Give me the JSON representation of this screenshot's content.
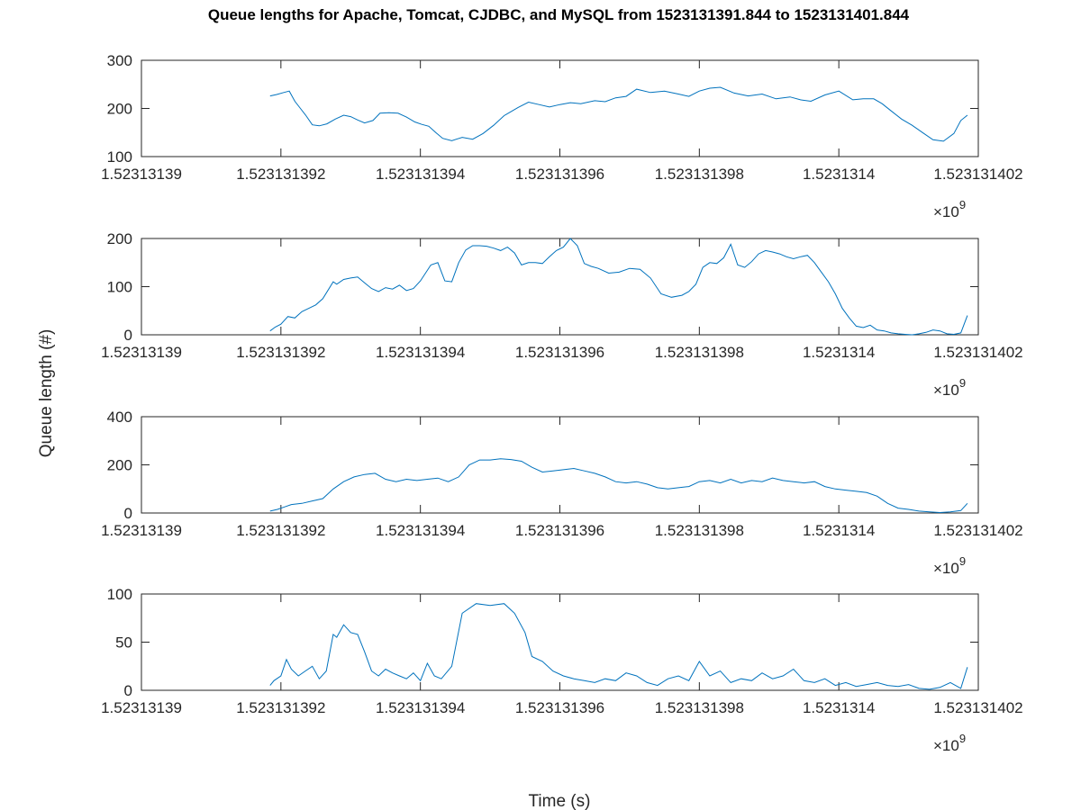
{
  "figure": {
    "title": "Queue lengths for Apache, Tomcat, CJDBC, and MySQL from 1523131391.844 to 1523131401.844",
    "xlabel": "Time (s)",
    "ylabel": "Queue length (#)",
    "x_exponent": "×10",
    "x_exponent_power": "9"
  },
  "chart_data": [
    {
      "type": "line",
      "line_color": "#0072BD",
      "xlim": [
        1523131390,
        1523131402
      ],
      "ylim": [
        100,
        300
      ],
      "x_ticks": [
        1523131390,
        1523131392,
        1523131394,
        1523131396,
        1523131398,
        1523131400,
        1523131402
      ],
      "x_tick_labels": [
        "1.52313139",
        "1.523131392",
        "1.523131394",
        "1.523131396",
        "1.523131398",
        "1.5231314",
        "1.523131402"
      ],
      "y_ticks": [
        100,
        200,
        300
      ],
      "y_tick_labels": [
        "100",
        "200",
        "300"
      ],
      "x": [
        1523131391.844,
        1523131391.94,
        1523131392.04,
        1523131392.12,
        1523131392.2,
        1523131392.28,
        1523131392.36,
        1523131392.45,
        1523131392.55,
        1523131392.66,
        1523131392.78,
        1523131392.9,
        1523131393.0,
        1523131393.1,
        1523131393.2,
        1523131393.32,
        1523131393.42,
        1523131393.55,
        1523131393.68,
        1523131393.8,
        1523131393.92,
        1523131394.02,
        1523131394.12,
        1523131394.22,
        1523131394.32,
        1523131394.45,
        1523131394.6,
        1523131394.75,
        1523131394.9,
        1523131395.05,
        1523131395.2,
        1523131395.4,
        1523131395.55,
        1523131395.7,
        1523131395.85,
        1523131396.0,
        1523131396.15,
        1523131396.3,
        1523131396.5,
        1523131396.65,
        1523131396.8,
        1523131396.95,
        1523131397.1,
        1523131397.3,
        1523131397.5,
        1523131397.7,
        1523131397.85,
        1523131398.0,
        1523131398.15,
        1523131398.3,
        1523131398.5,
        1523131398.7,
        1523131398.9,
        1523131399.1,
        1523131399.3,
        1523131399.45,
        1523131399.6,
        1523131399.8,
        1523131400.0,
        1523131400.2,
        1523131400.35,
        1523131400.5,
        1523131400.62,
        1523131400.75,
        1523131400.9,
        1523131401.05,
        1523131401.2,
        1523131401.35,
        1523131401.5,
        1523131401.65,
        1523131401.75,
        1523131401.844
      ],
      "y": [
        226,
        229,
        233,
        236,
        215,
        200,
        185,
        166,
        164,
        168,
        178,
        186,
        183,
        176,
        170,
        175,
        190,
        191,
        190,
        182,
        172,
        167,
        163,
        150,
        138,
        133,
        140,
        136,
        148,
        165,
        185,
        202,
        213,
        208,
        203,
        208,
        212,
        210,
        216,
        214,
        222,
        225,
        240,
        233,
        236,
        230,
        225,
        236,
        242,
        244,
        232,
        226,
        230,
        220,
        224,
        218,
        215,
        228,
        236,
        218,
        220,
        220,
        210,
        195,
        178,
        165,
        150,
        135,
        132,
        148,
        175,
        186
      ]
    },
    {
      "type": "line",
      "line_color": "#0072BD",
      "xlim": [
        1523131390,
        1523131402
      ],
      "ylim": [
        0,
        200
      ],
      "x_ticks": [
        1523131390,
        1523131392,
        1523131394,
        1523131396,
        1523131398,
        1523131400,
        1523131402
      ],
      "x_tick_labels": [
        "1.52313139",
        "1.523131392",
        "1.523131394",
        "1.523131396",
        "1.523131398",
        "1.5231314",
        "1.523131402"
      ],
      "y_ticks": [
        0,
        100,
        200
      ],
      "y_tick_labels": [
        "0",
        "100",
        "200"
      ],
      "x": [
        1523131391.844,
        1523131391.92,
        1523131392.0,
        1523131392.1,
        1523131392.2,
        1523131392.3,
        1523131392.4,
        1523131392.5,
        1523131392.6,
        1523131392.75,
        1523131392.8,
        1523131392.9,
        1523131393.0,
        1523131393.1,
        1523131393.2,
        1523131393.3,
        1523131393.4,
        1523131393.5,
        1523131393.6,
        1523131393.7,
        1523131393.8,
        1523131393.9,
        1523131394.0,
        1523131394.15,
        1523131394.25,
        1523131394.35,
        1523131394.45,
        1523131394.55,
        1523131394.65,
        1523131394.75,
        1523131394.85,
        1523131394.95,
        1523131395.05,
        1523131395.15,
        1523131395.25,
        1523131395.35,
        1523131395.45,
        1523131395.55,
        1523131395.65,
        1523131395.75,
        1523131395.85,
        1523131395.95,
        1523131396.05,
        1523131396.15,
        1523131396.25,
        1523131396.35,
        1523131396.45,
        1523131396.55,
        1523131396.7,
        1523131396.85,
        1523131397.0,
        1523131397.15,
        1523131397.3,
        1523131397.45,
        1523131397.6,
        1523131397.75,
        1523131397.85,
        1523131397.95,
        1523131398.05,
        1523131398.15,
        1523131398.25,
        1523131398.35,
        1523131398.45,
        1523131398.55,
        1523131398.65,
        1523131398.75,
        1523131398.85,
        1523131398.95,
        1523131399.05,
        1523131399.15,
        1523131399.25,
        1523131399.35,
        1523131399.45,
        1523131399.55,
        1523131399.65,
        1523131399.75,
        1523131399.85,
        1523131399.95,
        1523131400.05,
        1523131400.15,
        1523131400.25,
        1523131400.35,
        1523131400.45,
        1523131400.55,
        1523131400.65,
        1523131400.75,
        1523131400.85,
        1523131400.95,
        1523131401.05,
        1523131401.15,
        1523131401.25,
        1523131401.35,
        1523131401.45,
        1523131401.55,
        1523131401.65,
        1523131401.75,
        1523131401.844
      ],
      "y": [
        8,
        16,
        22,
        38,
        35,
        48,
        55,
        62,
        75,
        110,
        105,
        115,
        118,
        120,
        108,
        96,
        90,
        98,
        95,
        103,
        92,
        96,
        112,
        145,
        150,
        112,
        110,
        150,
        176,
        185,
        185,
        184,
        180,
        175,
        182,
        170,
        145,
        150,
        150,
        148,
        162,
        175,
        182,
        200,
        185,
        148,
        142,
        138,
        128,
        130,
        138,
        136,
        118,
        85,
        78,
        82,
        90,
        105,
        140,
        150,
        148,
        160,
        188,
        145,
        140,
        152,
        168,
        175,
        172,
        168,
        162,
        158,
        162,
        165,
        150,
        130,
        110,
        85,
        55,
        35,
        18,
        15,
        20,
        10,
        8,
        4,
        2,
        1,
        0,
        2,
        5,
        10,
        8,
        2,
        1,
        4,
        40
      ]
    },
    {
      "type": "line",
      "line_color": "#0072BD",
      "xlim": [
        1523131390,
        1523131402
      ],
      "ylim": [
        0,
        400
      ],
      "x_ticks": [
        1523131390,
        1523131392,
        1523131394,
        1523131396,
        1523131398,
        1523131400,
        1523131402
      ],
      "x_tick_labels": [
        "1.52313139",
        "1.523131392",
        "1.523131394",
        "1.523131396",
        "1.523131398",
        "1.5231314",
        "1.523131402"
      ],
      "y_ticks": [
        0,
        200,
        400
      ],
      "y_tick_labels": [
        "0",
        "200",
        "400"
      ],
      "x": [
        1523131391.844,
        1523131391.95,
        1523131392.05,
        1523131392.15,
        1523131392.3,
        1523131392.45,
        1523131392.6,
        1523131392.75,
        1523131392.9,
        1523131393.05,
        1523131393.2,
        1523131393.35,
        1523131393.5,
        1523131393.65,
        1523131393.8,
        1523131393.95,
        1523131394.1,
        1523131394.25,
        1523131394.4,
        1523131394.55,
        1523131394.7,
        1523131394.85,
        1523131395.0,
        1523131395.15,
        1523131395.3,
        1523131395.45,
        1523131395.6,
        1523131395.75,
        1523131395.9,
        1523131396.05,
        1523131396.2,
        1523131396.35,
        1523131396.5,
        1523131396.65,
        1523131396.8,
        1523131396.95,
        1523131397.1,
        1523131397.25,
        1523131397.4,
        1523131397.55,
        1523131397.7,
        1523131397.85,
        1523131398.0,
        1523131398.15,
        1523131398.3,
        1523131398.45,
        1523131398.6,
        1523131398.75,
        1523131398.9,
        1523131399.05,
        1523131399.2,
        1523131399.35,
        1523131399.5,
        1523131399.65,
        1523131399.8,
        1523131399.95,
        1523131400.1,
        1523131400.25,
        1523131400.4,
        1523131400.55,
        1523131400.7,
        1523131400.85,
        1523131401.0,
        1523131401.15,
        1523131401.3,
        1523131401.45,
        1523131401.6,
        1523131401.75,
        1523131401.844
      ],
      "y": [
        8,
        15,
        25,
        35,
        40,
        50,
        60,
        100,
        130,
        150,
        160,
        165,
        140,
        130,
        140,
        135,
        140,
        145,
        130,
        150,
        200,
        220,
        220,
        225,
        222,
        215,
        190,
        170,
        175,
        180,
        185,
        175,
        165,
        150,
        130,
        125,
        130,
        120,
        105,
        100,
        105,
        110,
        130,
        135,
        125,
        140,
        125,
        135,
        130,
        145,
        135,
        130,
        125,
        130,
        110,
        100,
        95,
        90,
        85,
        70,
        40,
        20,
        15,
        8,
        5,
        2,
        5,
        10,
        40
      ]
    },
    {
      "type": "line",
      "line_color": "#0072BD",
      "xlim": [
        1523131390,
        1523131402
      ],
      "ylim": [
        0,
        100
      ],
      "x_ticks": [
        1523131390,
        1523131392,
        1523131394,
        1523131396,
        1523131398,
        1523131400,
        1523131402
      ],
      "x_tick_labels": [
        "1.52313139",
        "1.523131392",
        "1.523131394",
        "1.523131396",
        "1.523131398",
        "1.5231314",
        "1.523131402"
      ],
      "y_ticks": [
        0,
        50,
        100
      ],
      "y_tick_labels": [
        "0",
        "50",
        "100"
      ],
      "x": [
        1523131391.844,
        1523131391.9,
        1523131392.0,
        1523131392.08,
        1523131392.15,
        1523131392.25,
        1523131392.35,
        1523131392.45,
        1523131392.55,
        1523131392.65,
        1523131392.75,
        1523131392.8,
        1523131392.9,
        1523131393.0,
        1523131393.1,
        1523131393.2,
        1523131393.3,
        1523131393.4,
        1523131393.5,
        1523131393.6,
        1523131393.7,
        1523131393.8,
        1523131393.9,
        1523131394.0,
        1523131394.1,
        1523131394.2,
        1523131394.3,
        1523131394.45,
        1523131394.6,
        1523131394.8,
        1523131395.0,
        1523131395.2,
        1523131395.35,
        1523131395.5,
        1523131395.6,
        1523131395.75,
        1523131395.9,
        1523131396.05,
        1523131396.2,
        1523131396.35,
        1523131396.5,
        1523131396.65,
        1523131396.8,
        1523131396.95,
        1523131397.1,
        1523131397.25,
        1523131397.4,
        1523131397.55,
        1523131397.7,
        1523131397.85,
        1523131398.0,
        1523131398.15,
        1523131398.3,
        1523131398.45,
        1523131398.6,
        1523131398.75,
        1523131398.9,
        1523131399.05,
        1523131399.2,
        1523131399.35,
        1523131399.5,
        1523131399.65,
        1523131399.8,
        1523131399.95,
        1523131400.1,
        1523131400.25,
        1523131400.4,
        1523131400.55,
        1523131400.7,
        1523131400.85,
        1523131401.0,
        1523131401.15,
        1523131401.3,
        1523131401.45,
        1523131401.6,
        1523131401.75,
        1523131401.844
      ],
      "y": [
        5,
        10,
        15,
        32,
        22,
        15,
        20,
        25,
        12,
        20,
        58,
        55,
        68,
        60,
        58,
        40,
        20,
        15,
        22,
        18,
        15,
        12,
        18,
        10,
        28,
        15,
        12,
        25,
        80,
        90,
        88,
        90,
        80,
        60,
        35,
        30,
        20,
        15,
        12,
        10,
        8,
        12,
        10,
        18,
        15,
        8,
        5,
        12,
        15,
        10,
        30,
        15,
        20,
        8,
        12,
        10,
        18,
        12,
        15,
        22,
        10,
        8,
        12,
        5,
        8,
        4,
        6,
        8,
        5,
        4,
        6,
        2,
        1,
        3,
        8,
        2,
        24
      ]
    }
  ]
}
